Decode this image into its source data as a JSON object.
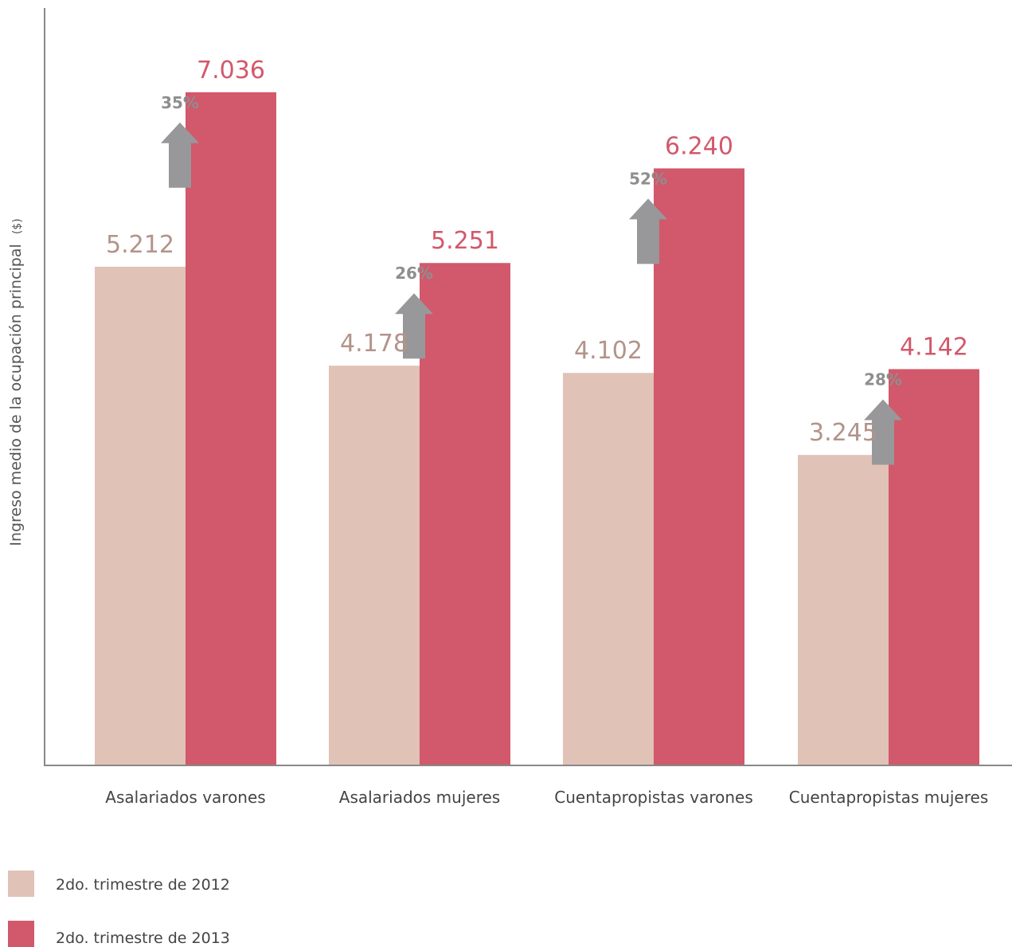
{
  "chart_data": {
    "type": "bar",
    "categories": [
      "Asalariados varones",
      "Asalariados mujeres",
      "Cuentapropistas varones",
      "Cuentapropistas mujeres"
    ],
    "series": [
      {
        "name": "2do. trimestre de 2012",
        "values": [
          5212,
          4178,
          4102,
          3245
        ],
        "labels": [
          "5.212",
          "4.178",
          "4.102",
          "3.245"
        ],
        "color": "#e0c2b7",
        "label_color": "#b39389"
      },
      {
        "name": "2do. trimestre de 2013",
        "values": [
          7036,
          5251,
          6240,
          4142
        ],
        "labels": [
          "7.036",
          "5.251",
          "6.240",
          "4.142"
        ],
        "color": "#d2586b",
        "label_color": "#d2586b"
      }
    ],
    "annotations": [
      {
        "category": "Asalariados varones",
        "text": "35%",
        "icon": "up-arrow-icon"
      },
      {
        "category": "Asalariados mujeres",
        "text": "26%",
        "icon": "up-arrow-icon"
      },
      {
        "category": "Cuentapropistas varones",
        "text": "52%",
        "icon": "up-arrow-icon"
      },
      {
        "category": "Cuentapropistas mujeres",
        "text": "28%",
        "icon": "up-arrow-icon"
      }
    ],
    "ylabel": "Ingreso medio de la ocupación principal",
    "ylabel_unit": "($)",
    "ylim": [
      0,
      8000
    ],
    "grid": false,
    "legend_position": "bottom-left",
    "arrow_color": "#98989a"
  }
}
